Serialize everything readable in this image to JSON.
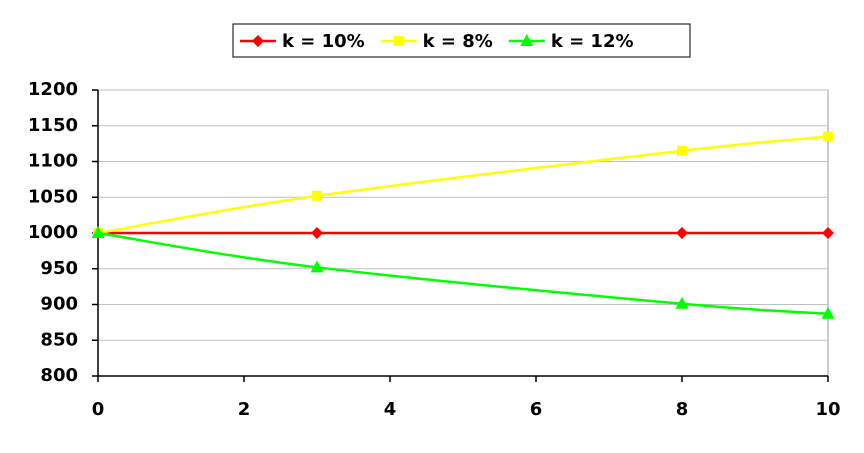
{
  "chart_data": {
    "type": "line",
    "x": [
      0,
      3,
      8,
      10
    ],
    "series": [
      {
        "name": "k = 10%",
        "color": "#ff0000",
        "marker": "diamond",
        "values": [
          1000,
          1000,
          1000,
          1000
        ]
      },
      {
        "name": "k = 8%",
        "color": "#ffff00",
        "marker": "square",
        "values": [
          1000,
          1052,
          1115,
          1135
        ]
      },
      {
        "name": "k = 12%",
        "color": "#00ff00",
        "marker": "triangle",
        "values": [
          1000,
          952,
          901,
          887
        ]
      }
    ],
    "xlim": [
      0,
      10
    ],
    "xticks": [
      0,
      2,
      4,
      6,
      8,
      10
    ],
    "ylim": [
      800,
      1200
    ],
    "yticks": [
      800,
      850,
      900,
      950,
      1000,
      1050,
      1100,
      1150,
      1200
    ],
    "grid": true,
    "legend": "top",
    "smooth": true
  }
}
